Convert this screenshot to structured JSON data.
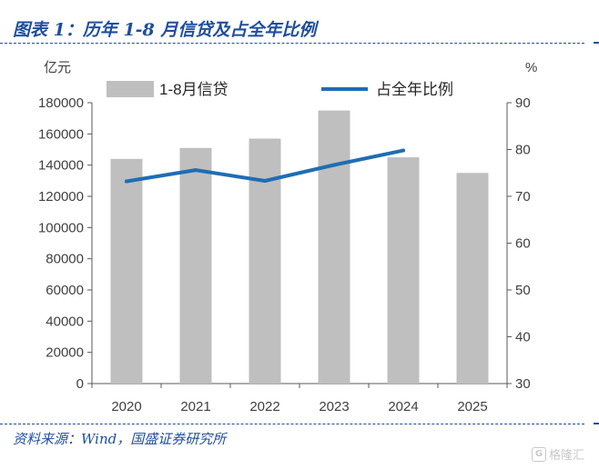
{
  "header": {
    "title": "图表 1：历年 1-8 月信贷及占全年比例"
  },
  "footer": {
    "source": "资料来源：Wind，国盛证券研究所",
    "watermark": "格隆汇"
  },
  "chart_data": {
    "type": "bar",
    "categories": [
      "2020",
      "2021",
      "2022",
      "2023",
      "2024",
      "2025"
    ],
    "series": [
      {
        "name": "1-8月信贷",
        "type": "bar",
        "axis": "left",
        "color": "#bfbfbf",
        "values": [
          144000,
          151000,
          157000,
          175000,
          145000,
          135000
        ]
      },
      {
        "name": "占全年比例",
        "type": "line",
        "axis": "right",
        "color": "#1f6db5",
        "values": [
          73.2,
          75.6,
          73.3,
          76.7,
          79.8,
          null
        ]
      }
    ],
    "ylabel": "亿元",
    "y2label": "%",
    "ylim": [
      0,
      180000
    ],
    "yticks": [
      "0",
      "20000",
      "40000",
      "60000",
      "80000",
      "100000",
      "120000",
      "140000",
      "160000",
      "180000"
    ],
    "y2lim": [
      30,
      90
    ],
    "y2ticks": [
      "30",
      "40",
      "50",
      "60",
      "70",
      "80",
      "90"
    ],
    "grid": false,
    "legend": "top"
  }
}
